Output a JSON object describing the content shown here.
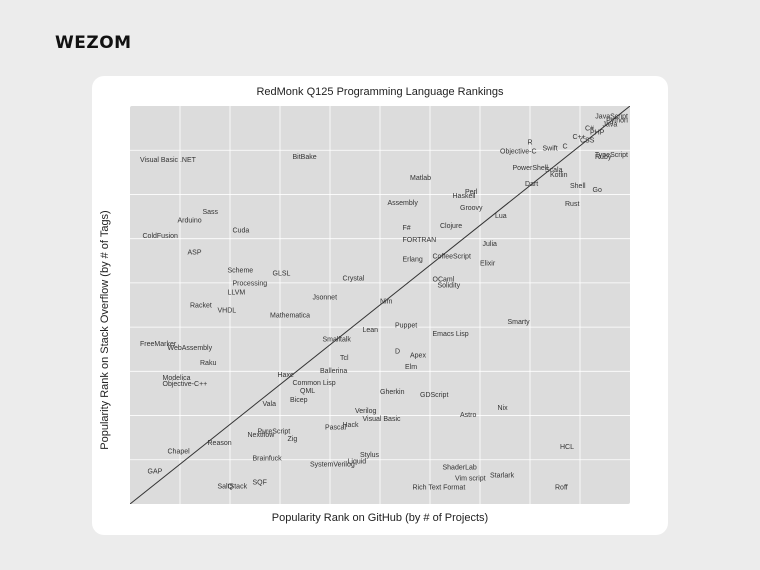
{
  "brand": {
    "logo_text": "WEZOM"
  },
  "chart_data": {
    "type": "scatter",
    "title": "RedMonk Q125 Programming Language Rankings",
    "xlabel": "Popularity Rank on GitHub (by # of Projects)",
    "ylabel": "Popularity Rank on Stack Overflow (by # of Tags)",
    "xlim": [
      0,
      100
    ],
    "ylim": [
      0,
      100
    ],
    "grid": true,
    "trendline": true,
    "points": [
      {
        "label": "JavaScript",
        "x": 97,
        "y": 97.5
      },
      {
        "label": "Python",
        "x": 95.5,
        "y": 96.5
      },
      {
        "label": "Java",
        "x": 94.5,
        "y": 95.5
      },
      {
        "label": "C#",
        "x": 91,
        "y": 94.5
      },
      {
        "label": "PHP",
        "x": 92,
        "y": 93.5
      },
      {
        "label": "C++",
        "x": 88.5,
        "y": 92.3
      },
      {
        "label": "CSS",
        "x": 90,
        "y": 91.5
      },
      {
        "label": "R",
        "x": 79.5,
        "y": 91
      },
      {
        "label": "C",
        "x": 86.5,
        "y": 90
      },
      {
        "label": "Swift",
        "x": 82.5,
        "y": 89.5
      },
      {
        "label": "Objective-C",
        "x": 74,
        "y": 88.7
      },
      {
        "label": "TypeScript",
        "x": 96,
        "y": 87.8
      },
      {
        "label": "Ruby",
        "x": 93,
        "y": 87.3
      },
      {
        "label": "PowerShell",
        "x": 76.5,
        "y": 84.5
      },
      {
        "label": "Scala",
        "x": 83,
        "y": 84
      },
      {
        "label": "Kotlin",
        "x": 84,
        "y": 82.8
      },
      {
        "label": "Dart",
        "x": 79,
        "y": 80.5
      },
      {
        "label": "Shell",
        "x": 88,
        "y": 80
      },
      {
        "label": "Go",
        "x": 92.5,
        "y": 79
      },
      {
        "label": "Perl",
        "x": 67,
        "y": 78.5
      },
      {
        "label": "Haskell",
        "x": 64.5,
        "y": 77.5
      },
      {
        "label": "Rust",
        "x": 87,
        "y": 75.5
      },
      {
        "label": "Groovy",
        "x": 66,
        "y": 74.5
      },
      {
        "label": "Lua",
        "x": 73,
        "y": 72.5
      },
      {
        "label": "Visual Basic .NET",
        "x": 2,
        "y": 86.5
      },
      {
        "label": "BitBake",
        "x": 32.5,
        "y": 87.3
      },
      {
        "label": "Matlab",
        "x": 56,
        "y": 82
      },
      {
        "label": "Assembly",
        "x": 51.5,
        "y": 75.8
      },
      {
        "label": "F#",
        "x": 54.5,
        "y": 69.5
      },
      {
        "label": "Clojure",
        "x": 62,
        "y": 70
      },
      {
        "label": "FORTRAN",
        "x": 54.5,
        "y": 66.5
      },
      {
        "label": "Julia",
        "x": 70.5,
        "y": 65.5
      },
      {
        "label": "Erlang",
        "x": 54.5,
        "y": 61.5
      },
      {
        "label": "CoffeeScript",
        "x": 60.5,
        "y": 62.3
      },
      {
        "label": "Elixir",
        "x": 70,
        "y": 60.5
      },
      {
        "label": "OCaml",
        "x": 60.5,
        "y": 56.5
      },
      {
        "label": "Solidity",
        "x": 61.5,
        "y": 55
      },
      {
        "label": "Sass",
        "x": 14.5,
        "y": 73.5
      },
      {
        "label": "Arduino",
        "x": 9.5,
        "y": 71.3
      },
      {
        "label": "Cuda",
        "x": 20.5,
        "y": 68.8
      },
      {
        "label": "ColdFusion",
        "x": 2.5,
        "y": 67.5
      },
      {
        "label": "ASP",
        "x": 11.5,
        "y": 63.3
      },
      {
        "label": "Scheme",
        "x": 19.5,
        "y": 58.8
      },
      {
        "label": "GLSL",
        "x": 28.5,
        "y": 58
      },
      {
        "label": "Crystal",
        "x": 42.5,
        "y": 56.8
      },
      {
        "label": "Processing",
        "x": 20.5,
        "y": 55.5
      },
      {
        "label": "LLVM",
        "x": 19.5,
        "y": 53.3
      },
      {
        "label": "Jsonnet",
        "x": 36.5,
        "y": 52
      },
      {
        "label": "Nim",
        "x": 50,
        "y": 51
      },
      {
        "label": "Racket",
        "x": 12,
        "y": 50
      },
      {
        "label": "VHDL",
        "x": 17.5,
        "y": 48.8
      },
      {
        "label": "Mathematica",
        "x": 28,
        "y": 47.5
      },
      {
        "label": "Puppet",
        "x": 53,
        "y": 45
      },
      {
        "label": "Smarty",
        "x": 75.5,
        "y": 45.8
      },
      {
        "label": "Lean",
        "x": 46.5,
        "y": 43.8
      },
      {
        "label": "Emacs Lisp",
        "x": 60.5,
        "y": 42.8
      },
      {
        "label": "Smalltalk",
        "x": 38.5,
        "y": 41.5
      },
      {
        "label": "FreeMarker",
        "x": 2,
        "y": 40.3
      },
      {
        "label": "WebAssembly",
        "x": 7.5,
        "y": 39.3
      },
      {
        "label": "D",
        "x": 53,
        "y": 38.5
      },
      {
        "label": "Apex",
        "x": 56,
        "y": 37.5
      },
      {
        "label": "Tcl",
        "x": 42,
        "y": 36.8
      },
      {
        "label": "Raku",
        "x": 14,
        "y": 35.5
      },
      {
        "label": "Elm",
        "x": 55,
        "y": 34.5
      },
      {
        "label": "Ballerina",
        "x": 38,
        "y": 33.5
      },
      {
        "label": "Haxe",
        "x": 29.5,
        "y": 32.5
      },
      {
        "label": "Modelica",
        "x": 6.5,
        "y": 31.8
      },
      {
        "label": "Common Lisp",
        "x": 32.5,
        "y": 30.5
      },
      {
        "label": "Objective-C++",
        "x": 6.5,
        "y": 30.3
      },
      {
        "label": "QML",
        "x": 34,
        "y": 28.5
      },
      {
        "label": "Gherkin",
        "x": 50,
        "y": 28.3
      },
      {
        "label": "GDScript",
        "x": 58,
        "y": 27.5
      },
      {
        "label": "Bicep",
        "x": 32,
        "y": 26.3
      },
      {
        "label": "Vala",
        "x": 26.5,
        "y": 25.3
      },
      {
        "label": "Nix",
        "x": 73.5,
        "y": 24.3
      },
      {
        "label": "Verilog",
        "x": 45,
        "y": 23.5
      },
      {
        "label": "Astro",
        "x": 66,
        "y": 22.5
      },
      {
        "label": "Visual Basic",
        "x": 46.5,
        "y": 21.5
      },
      {
        "label": "Hack",
        "x": 42.5,
        "y": 20
      },
      {
        "label": "Pascal",
        "x": 39,
        "y": 19.3
      },
      {
        "label": "PureScript",
        "x": 25.5,
        "y": 18.3
      },
      {
        "label": "Nextflow",
        "x": 23.5,
        "y": 17.5
      },
      {
        "label": "Zig",
        "x": 31.5,
        "y": 16.5
      },
      {
        "label": "Reason",
        "x": 15.5,
        "y": 15.5
      },
      {
        "label": "HCL",
        "x": 86,
        "y": 14.5
      },
      {
        "label": "Chapel",
        "x": 7.5,
        "y": 13.3
      },
      {
        "label": "Stylus",
        "x": 46,
        "y": 12.5
      },
      {
        "label": "Brainfuck",
        "x": 24.5,
        "y": 11.5
      },
      {
        "label": "Liquid",
        "x": 43.5,
        "y": 10.8
      },
      {
        "label": "SystemVerilog",
        "x": 36,
        "y": 10
      },
      {
        "label": "ShaderLab",
        "x": 62.5,
        "y": 9.3
      },
      {
        "label": "GAP",
        "x": 3.5,
        "y": 8.3
      },
      {
        "label": "Starlark",
        "x": 72,
        "y": 7.3
      },
      {
        "label": "Vim script",
        "x": 65,
        "y": 6.5
      },
      {
        "label": "SQF",
        "x": 24.5,
        "y": 5.5
      },
      {
        "label": "SaltStack",
        "x": 17.5,
        "y": 4.5
      },
      {
        "label": "Q",
        "x": 19.5,
        "y": 4.5
      },
      {
        "label": "Rich Text Format",
        "x": 56.5,
        "y": 4.3
      },
      {
        "label": "Roff",
        "x": 85,
        "y": 4.3
      }
    ]
  }
}
